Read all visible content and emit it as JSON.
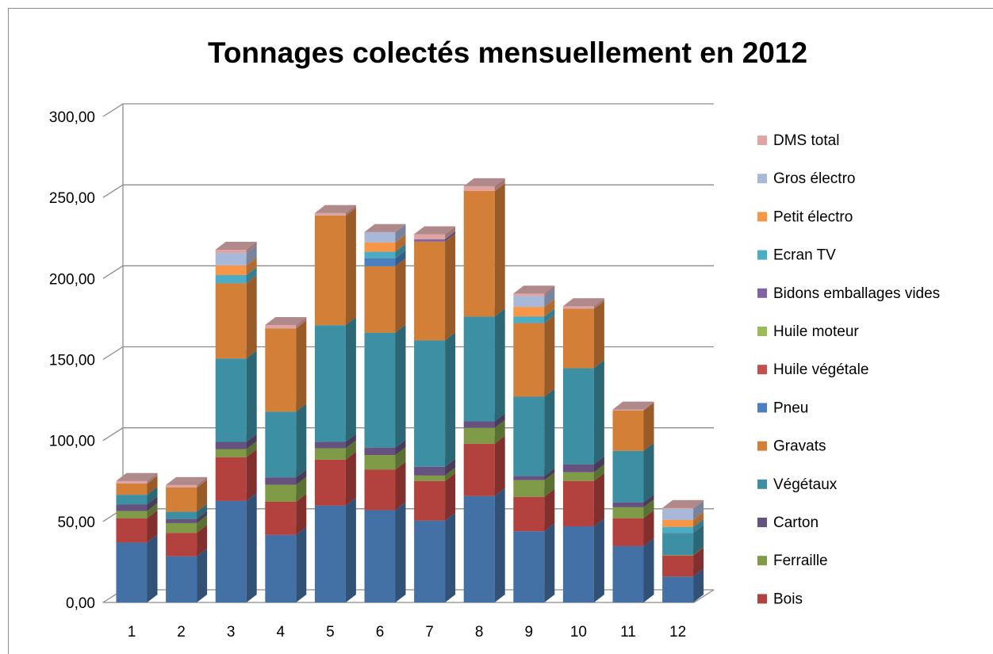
{
  "chart_data": {
    "type": "bar",
    "stacked": true,
    "three_d": true,
    "title": "Tonnages colectés mensuellement en 2012",
    "categories": [
      "1",
      "2",
      "3",
      "4",
      "5",
      "6",
      "7",
      "8",
      "9",
      "10",
      "11",
      "12"
    ],
    "ylim": [
      0,
      300
    ],
    "yticks": [
      {
        "value": 0,
        "label": "0,00"
      },
      {
        "value": 50,
        "label": "50,00"
      },
      {
        "value": 100,
        "label": "100,00"
      },
      {
        "value": 150,
        "label": "150,00"
      },
      {
        "value": 200,
        "label": "200,00"
      },
      {
        "value": 250,
        "label": "250,00"
      },
      {
        "value": 300,
        "label": "300,00"
      }
    ],
    "grid": true,
    "series": [
      {
        "color": "#4471a5",
        "values": [
          37,
          28.5,
          62.7,
          41.7,
          59.8,
          57,
          50.5,
          65.7,
          44,
          47,
          34.8,
          16
        ]
      },
      {
        "name": "Bois",
        "color": "#b3423f",
        "values": [
          15,
          14.5,
          27,
          20.5,
          28.4,
          25,
          24.5,
          32.3,
          21.2,
          28,
          17.2,
          13
        ]
      },
      {
        "name": "Ferraille",
        "color": "#7f9b47",
        "values": [
          4.5,
          6,
          5,
          10.5,
          7,
          9,
          3.4,
          9.8,
          10.3,
          5.4,
          6.8,
          0.4
        ]
      },
      {
        "name": "Carton",
        "color": "#66527f",
        "values": [
          4,
          2.5,
          4.4,
          4.5,
          4,
          4.6,
          5.4,
          4,
          2.5,
          4.9,
          3,
          0
        ]
      },
      {
        "name": "Végétaux",
        "color": "#3d8fa3",
        "values": [
          6,
          4.5,
          51.5,
          40.6,
          72,
          71,
          78,
          64.7,
          49,
          59.3,
          31.8,
          13.6
        ]
      },
      {
        "name": "Gravats",
        "color": "#d47f37",
        "values": [
          7,
          15,
          46.5,
          51.5,
          67.7,
          41,
          61,
          77.5,
          45.5,
          36.8,
          25,
          0
        ]
      },
      {
        "name": "Pneu",
        "color": "#4a80c0",
        "values": [
          0,
          0,
          0,
          0,
          0,
          4.9,
          0,
          0,
          0,
          0,
          0,
          0
        ]
      },
      {
        "name": "Huile végétale",
        "color": "#c4504c",
        "values": [
          0,
          0,
          0,
          0,
          0,
          0,
          0,
          0,
          0,
          0,
          0,
          0
        ]
      },
      {
        "name": "Huile moteur",
        "color": "#9bbb59",
        "values": [
          0,
          0,
          0,
          0,
          0,
          0,
          0,
          0,
          0,
          0,
          0,
          0
        ]
      },
      {
        "name": "Bidons emballages vides",
        "color": "#8064a2",
        "values": [
          0,
          0,
          0,
          0,
          0,
          0,
          1.5,
          0,
          0,
          0,
          0,
          0
        ]
      },
      {
        "name": "Ecran TV",
        "color": "#4bacc6",
        "values": [
          0,
          0,
          5,
          0,
          0,
          4,
          0,
          0,
          4,
          0,
          0,
          3.6
        ]
      },
      {
        "name": "Petit électro",
        "color": "#f79646",
        "values": [
          0,
          0,
          6,
          0,
          0,
          5.8,
          0,
          0,
          6,
          0,
          0,
          4.4
        ]
      },
      {
        "name": "Gros électro",
        "color": "#a8b8d8",
        "values": [
          0,
          0,
          7.7,
          0,
          0,
          6.4,
          0,
          0,
          6.7,
          0,
          0,
          6.8
        ]
      },
      {
        "name": "DMS total",
        "color": "#e0a4a3",
        "values": [
          1.5,
          1.5,
          2,
          2,
          1.5,
          0,
          3,
          3,
          1.5,
          1.5,
          0.5,
          0.5
        ]
      }
    ]
  }
}
